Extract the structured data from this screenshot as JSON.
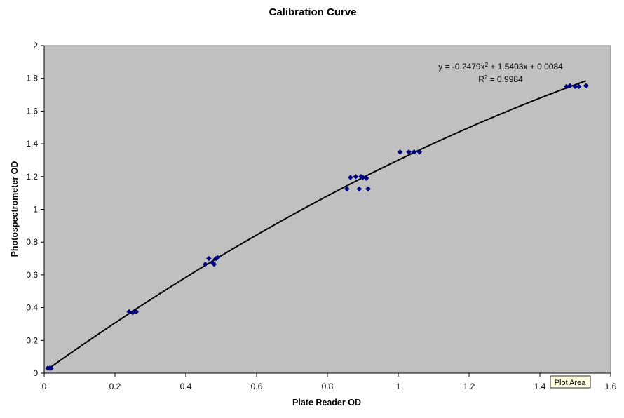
{
  "chart_data": {
    "type": "scatter",
    "title": "Calibration Curve",
    "xlabel": "Plate Reader OD",
    "ylabel": "Photospectrometer OD",
    "xlim": [
      0,
      1.6
    ],
    "ylim": [
      0,
      2
    ],
    "x_ticks": [
      "0",
      "0.2",
      "0.4",
      "0.6",
      "0.8",
      "1",
      "1.2",
      "1.4",
      "1.6"
    ],
    "y_ticks": [
      "0",
      "0.2",
      "0.4",
      "0.6",
      "0.8",
      "1",
      "1.2",
      "1.4",
      "1.6",
      "1.8",
      "2"
    ],
    "plot_background": "#c0c0c0",
    "marker_color": "#000080",
    "trendline_color": "#000000",
    "grid": false,
    "legend": "none",
    "series": [
      {
        "points": [
          [
            0.01,
            0.03
          ],
          [
            0.015,
            0.03
          ],
          [
            0.02,
            0.03
          ],
          [
            0.24,
            0.375
          ],
          [
            0.25,
            0.37
          ],
          [
            0.26,
            0.375
          ],
          [
            0.455,
            0.665
          ],
          [
            0.465,
            0.7
          ],
          [
            0.475,
            0.675
          ],
          [
            0.48,
            0.665
          ],
          [
            0.485,
            0.7
          ],
          [
            0.49,
            0.705
          ],
          [
            0.855,
            1.125
          ],
          [
            0.865,
            1.195
          ],
          [
            0.88,
            1.2
          ],
          [
            0.89,
            1.125
          ],
          [
            0.895,
            1.2
          ],
          [
            0.9,
            1.195
          ],
          [
            0.91,
            1.19
          ],
          [
            0.915,
            1.125
          ],
          [
            1.005,
            1.35
          ],
          [
            1.03,
            1.35
          ],
          [
            1.045,
            1.35
          ],
          [
            1.06,
            1.35
          ],
          [
            1.475,
            1.75
          ],
          [
            1.485,
            1.755
          ],
          [
            1.5,
            1.75
          ],
          [
            1.51,
            1.75
          ],
          [
            1.53,
            1.755
          ]
        ]
      }
    ],
    "trendline": {
      "type": "polynomial",
      "coefficients": [
        -0.2479,
        1.5403,
        0.0084
      ],
      "x_range": [
        0.01,
        1.53
      ],
      "equation": "y = -0.2479x² + 1.5403x + 0.0084",
      "r_squared": "R² = 0.9984"
    },
    "tooltip": "Plot Area"
  }
}
